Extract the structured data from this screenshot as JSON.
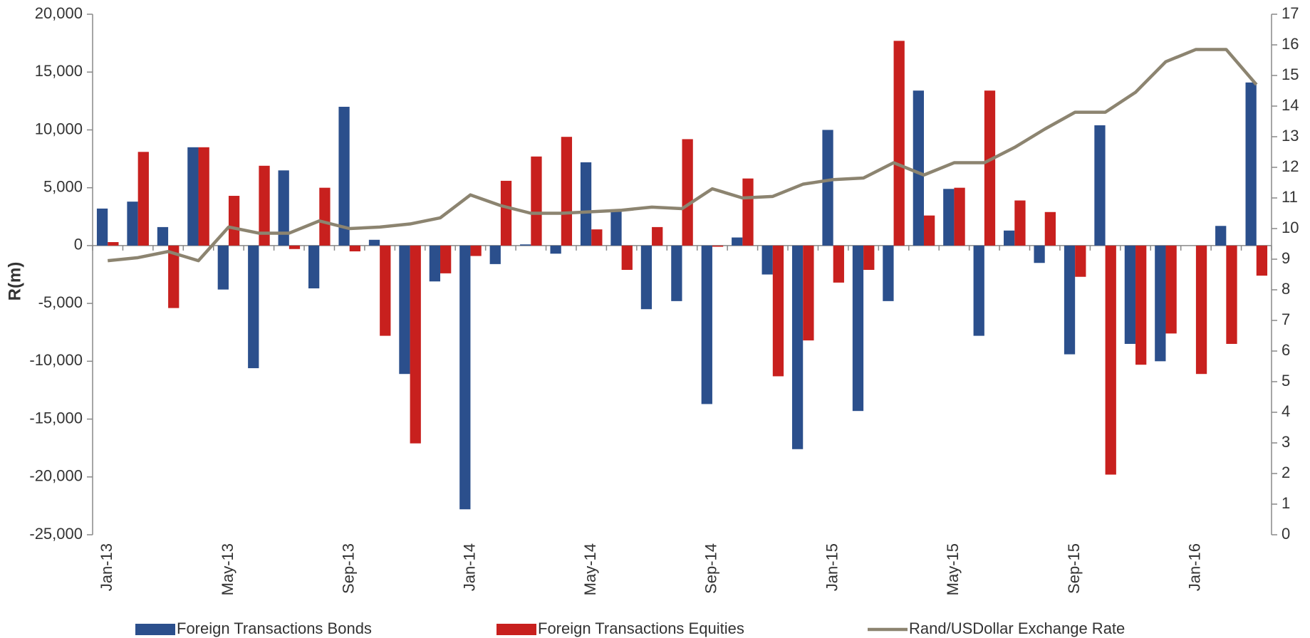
{
  "chart_data": {
    "type": "bar",
    "y_label": "R(m)",
    "categories": [
      "Jan-13",
      null,
      null,
      null,
      "May-13",
      null,
      null,
      null,
      "Sep-13",
      null,
      null,
      null,
      "Jan-14",
      null,
      null,
      null,
      "May-14",
      null,
      null,
      null,
      "Sep-14",
      null,
      null,
      null,
      "Jan-15",
      null,
      null,
      null,
      "May-15",
      null,
      null,
      null,
      "Sep-15",
      null,
      null,
      null,
      "Jan-16",
      null,
      null
    ],
    "series": [
      {
        "name": "Foreign Transactions Bonds",
        "color": "#2b4f8c",
        "values": [
          3200,
          3800,
          1600,
          8500,
          -3800,
          -10600,
          6500,
          -3700,
          12000,
          500,
          -11100,
          -3100,
          -22800,
          -1600,
          100,
          -700,
          7200,
          3000,
          -5500,
          -4800,
          -13700,
          700,
          -2500,
          -17600,
          10000,
          -14300,
          -4800,
          13400,
          4900,
          -7800,
          1300,
          -1500,
          -9400,
          10400,
          -8500,
          -10000,
          0,
          1700,
          14100
        ]
      },
      {
        "name": "Foreign Transactions Equities",
        "color": "#c8201e",
        "values": [
          300,
          8100,
          -5400,
          8500,
          4300,
          6900,
          -300,
          5000,
          -500,
          -7800,
          -17100,
          -2400,
          -900,
          5600,
          7700,
          9400,
          1400,
          -2100,
          1600,
          9200,
          -100,
          5800,
          -11300,
          -8200,
          -3200,
          -2100,
          17700,
          2600,
          5000,
          13400,
          3900,
          2900,
          -2700,
          -19800,
          -10300,
          -7600,
          -11100,
          -8500,
          -2600
        ]
      },
      {
        "name": "Rand/USDollar Exchange Rate",
        "type": "line",
        "axis": "y2",
        "color": "#8c8470",
        "values": [
          8.95,
          9.05,
          9.25,
          8.95,
          10.05,
          9.85,
          9.85,
          10.25,
          10.0,
          10.05,
          10.15,
          10.35,
          11.1,
          10.75,
          10.5,
          10.5,
          10.55,
          10.6,
          10.7,
          10.65,
          11.3,
          11.0,
          11.05,
          11.45,
          11.6,
          11.65,
          12.15,
          11.75,
          12.15,
          12.15,
          12.65,
          13.25,
          13.8,
          13.8,
          14.45,
          15.45,
          15.85,
          15.85,
          14.7
        ]
      }
    ],
    "ylim": [
      -25000,
      20000
    ],
    "yticks": [
      {
        "value": -25000,
        "label": "-25,000"
      },
      {
        "value": -20000,
        "label": "-20,000"
      },
      {
        "value": -15000,
        "label": "-15,000"
      },
      {
        "value": -10000,
        "label": "-10,000"
      },
      {
        "value": -5000,
        "label": "-5,000"
      },
      0,
      {
        "value": 5000,
        "label": "5,000"
      },
      {
        "value": 10000,
        "label": "10,000"
      },
      {
        "value": 15000,
        "label": "15,000"
      },
      {
        "value": 20000,
        "label": "20,000"
      }
    ],
    "y2lim": [
      0,
      17
    ],
    "y2ticks": [
      0,
      1,
      2,
      3,
      4,
      5,
      6,
      7,
      8,
      9,
      10,
      11,
      12,
      13,
      14,
      15,
      16,
      17
    ],
    "grid": false,
    "legend": "bottom"
  }
}
